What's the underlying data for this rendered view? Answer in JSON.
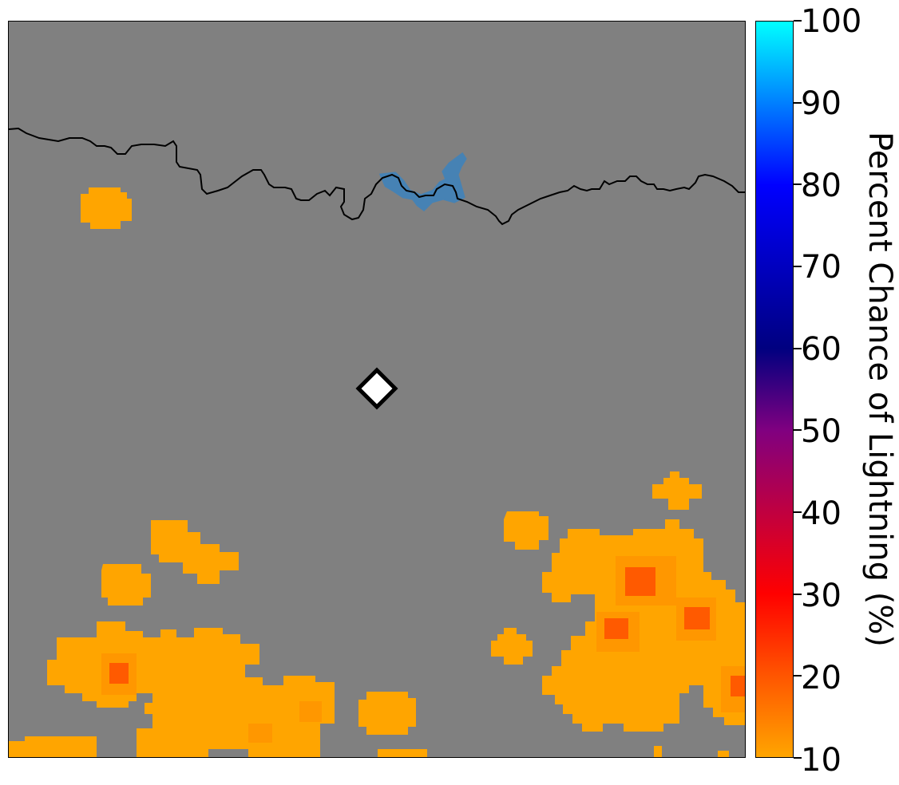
{
  "map": {
    "background_color": "#808080",
    "coastline_color": "#000000",
    "water_color": "#4682b4",
    "marker": {
      "icon": "white-diamond-marker",
      "fill": "#ffffff",
      "stroke": "#000000"
    },
    "fill_colors": {
      "p10_15": "#ffa500",
      "p15_20": "#ff8c00",
      "p20_25": "#ff5a00"
    }
  },
  "colorbar": {
    "label": "Percent Chance of Lightning (%)",
    "range": [
      10,
      100
    ],
    "ticks": [
      "10",
      "20",
      "30",
      "40",
      "50",
      "60",
      "70",
      "80",
      "90",
      "100"
    ],
    "color_stops": [
      {
        "value": 10,
        "color": "#ffa500"
      },
      {
        "value": 20,
        "color": "#ff5500"
      },
      {
        "value": 30,
        "color": "#ff0000"
      },
      {
        "value": 40,
        "color": "#c00040"
      },
      {
        "value": 50,
        "color": "#800080"
      },
      {
        "value": 60,
        "color": "#000080"
      },
      {
        "value": 80,
        "color": "#0000ff"
      },
      {
        "value": 90,
        "color": "#007fff"
      },
      {
        "value": 100,
        "color": "#00ffff"
      }
    ]
  }
}
